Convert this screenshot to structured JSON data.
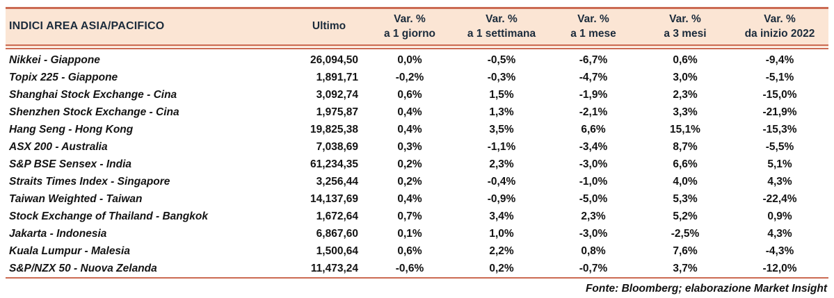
{
  "colors": {
    "header_bg": "#FBE5D4",
    "accent_border": "#CB6A52",
    "header_text": "#1B2B3B",
    "body_text": "#131313"
  },
  "table": {
    "header": {
      "title": "INDICI AREA ASIA/PACIFICO",
      "ultimo": "Ultimo",
      "var_label": "Var. %",
      "periods": {
        "0": "a 1 giorno",
        "1": "a 1 settimana",
        "2": "a 1 mese",
        "3": "a 3 mesi",
        "4": "da inizio 2022"
      }
    },
    "rows": [
      {
        "name": "Nikkei - Giappone",
        "ultimo": "26,094,50",
        "vars": [
          "0,0%",
          "-0,5%",
          "-6,7%",
          "0,6%",
          "-9,4%"
        ]
      },
      {
        "name": "Topix 225 - Giappone",
        "ultimo": "1,891,71",
        "vars": [
          "-0,2%",
          "-0,3%",
          "-4,7%",
          "3,0%",
          "-5,1%"
        ]
      },
      {
        "name": "Shanghai Stock Exchange - Cina",
        "ultimo": "3,092,74",
        "vars": [
          "0,6%",
          "1,5%",
          "-1,9%",
          "2,3%",
          "-15,0%"
        ]
      },
      {
        "name": "Shenzhen Stock Exchange - Cina",
        "ultimo": "1,975,87",
        "vars": [
          "0,4%",
          "1,3%",
          "-2,1%",
          "3,3%",
          "-21,9%"
        ]
      },
      {
        "name": "Hang Seng - Hong Kong",
        "ultimo": "19,825,38",
        "vars": [
          "0,4%",
          "3,5%",
          "6,6%",
          "15,1%",
          "-15,3%"
        ]
      },
      {
        "name": "ASX 200 - Australia",
        "ultimo": "7,038,69",
        "vars": [
          "0,3%",
          "-1,1%",
          "-3,4%",
          "8,7%",
          "-5,5%"
        ]
      },
      {
        "name": "S&P BSE Sensex - India",
        "ultimo": "61,234,35",
        "vars": [
          "0,2%",
          "2,3%",
          "-3,0%",
          "6,6%",
          "5,1%"
        ]
      },
      {
        "name": "Straits Times Index - Singapore",
        "ultimo": "3,256,44",
        "vars": [
          "0,2%",
          "-0,4%",
          "-1,0%",
          "4,0%",
          "4,3%"
        ]
      },
      {
        "name": "Taiwan Weighted - Taiwan",
        "ultimo": "14,137,69",
        "vars": [
          "0,4%",
          "-0,9%",
          "-5,0%",
          "5,3%",
          "-22,4%"
        ]
      },
      {
        "name": "Stock Exchange of Thailand - Bangkok",
        "ultimo": "1,672,64",
        "vars": [
          "0,7%",
          "3,4%",
          "2,3%",
          "5,2%",
          "0,9%"
        ]
      },
      {
        "name": "Jakarta - Indonesia",
        "ultimo": "6,867,60",
        "vars": [
          "0,1%",
          "1,0%",
          "-3,0%",
          "-2,5%",
          "4,3%"
        ]
      },
      {
        "name": "Kuala Lumpur - Malesia",
        "ultimo": "1,500,64",
        "vars": [
          "0,6%",
          "2,2%",
          "0,8%",
          "7,6%",
          "-4,3%"
        ]
      },
      {
        "name": "S&P/NZX 50 - Nuova Zelanda",
        "ultimo": "11,473,24",
        "vars": [
          "-0,6%",
          "0,2%",
          "-0,7%",
          "3,7%",
          "-12,0%"
        ]
      }
    ]
  },
  "footer": {
    "source_note": "Fonte: Bloomberg; elaborazione Market Insight"
  }
}
